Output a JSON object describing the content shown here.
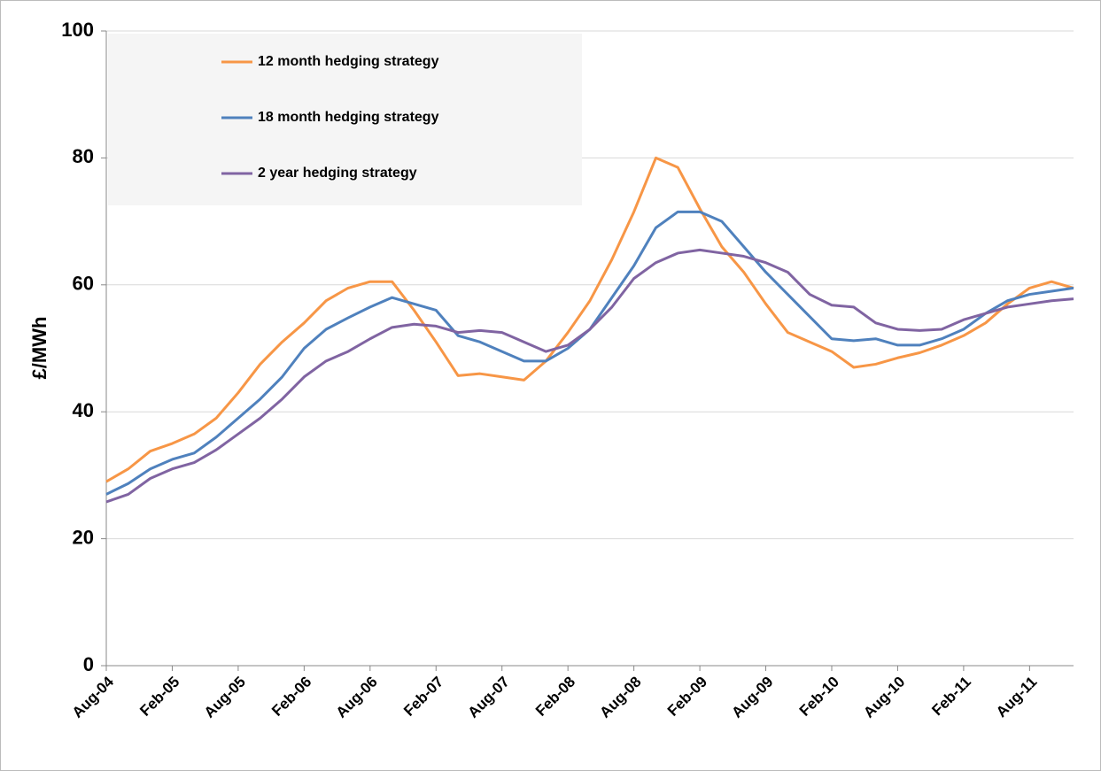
{
  "chart_data": {
    "type": "line",
    "ylabel": "£/MWh",
    "categories": [
      "Aug-04",
      null,
      null,
      "Feb-05",
      null,
      null,
      "Aug-05",
      null,
      null,
      "Feb-06",
      null,
      null,
      "Aug-06",
      null,
      null,
      "Feb-07",
      null,
      null,
      "Aug-07",
      null,
      null,
      "Feb-08",
      null,
      null,
      "Aug-08",
      null,
      null,
      "Feb-09",
      null,
      null,
      "Aug-09",
      null,
      null,
      "Feb-10",
      null,
      null,
      "Aug-10",
      null,
      null,
      "Feb-11",
      null,
      null,
      "Aug-11",
      null,
      null
    ],
    "series": [
      {
        "name": "12 month hedging strategy",
        "color": "#f79646",
        "values": [
          29,
          31,
          33.8,
          35,
          36.5,
          39,
          43,
          47.5,
          51,
          54,
          57.5,
          59.5,
          60.5,
          60.5,
          56,
          51,
          45.7,
          46,
          45.5,
          45,
          48,
          52.5,
          57.5,
          64,
          71.5,
          80,
          78.5,
          72,
          66,
          62,
          57,
          52.5,
          51,
          49.5,
          47,
          47.5,
          48.5,
          49.3,
          50.5,
          52,
          54,
          57,
          59.5,
          60.5,
          59.5
        ]
      },
      {
        "name": "18 month hedging strategy",
        "color": "#4f81bd",
        "values": [
          27,
          28.7,
          31,
          32.5,
          33.5,
          36,
          39,
          42,
          45.5,
          50,
          53,
          54.8,
          56.5,
          58,
          57,
          56,
          52,
          51,
          49.5,
          48,
          48,
          50,
          53,
          58,
          63,
          69,
          71.5,
          71.5,
          70,
          66,
          62,
          58.5,
          55,
          51.5,
          51.2,
          51.5,
          50.5,
          50.5,
          51.5,
          53,
          55.5,
          57.5,
          58.5,
          59,
          59.5
        ]
      },
      {
        "name": "2 year hedging strategy",
        "color": "#8064a2",
        "values": [
          25.8,
          27,
          29.5,
          31,
          32,
          34,
          36.5,
          39,
          42,
          45.5,
          48,
          49.5,
          51.5,
          53.3,
          53.8,
          53.5,
          52.5,
          52.8,
          52.5,
          51,
          49.5,
          50.5,
          53,
          56.5,
          61,
          63.5,
          65,
          65.5,
          65,
          64.5,
          63.5,
          62,
          58.5,
          56.8,
          56.5,
          54,
          53,
          52.8,
          53,
          54.5,
          55.5,
          56.5,
          57,
          57.5,
          57.8
        ]
      }
    ],
    "ylim": [
      0,
      100
    ],
    "yticks": [
      0,
      20,
      40,
      60,
      80,
      100
    ],
    "grid": true,
    "legend": "upper left"
  }
}
